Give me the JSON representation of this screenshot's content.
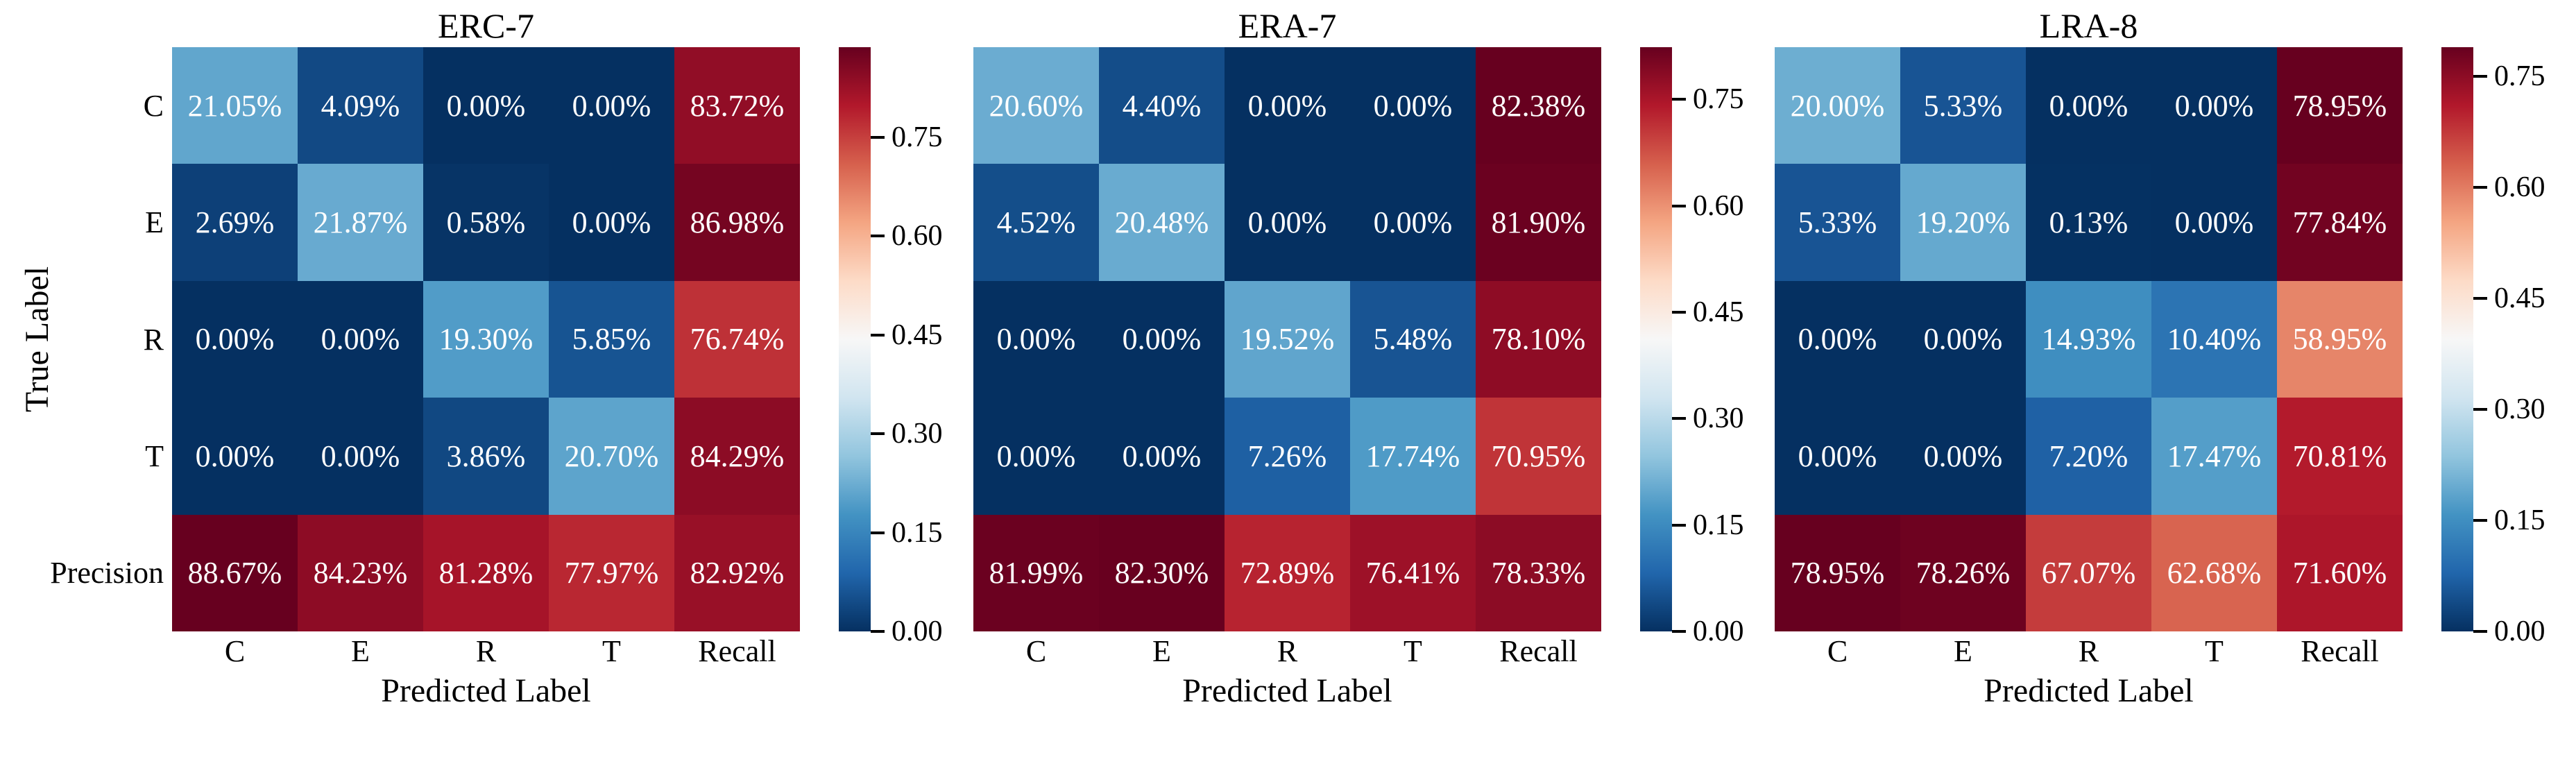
{
  "figure": {
    "xlabel": "Predicted Label",
    "ylabel": "True Label",
    "row_labels": [
      "C",
      "E",
      "R",
      "T",
      "Precision"
    ],
    "col_labels": [
      "C",
      "E",
      "R",
      "T",
      "Recall"
    ]
  },
  "chart_data": [
    {
      "type": "heatmap",
      "title": "ERC-7",
      "rows": [
        "C",
        "E",
        "R",
        "T",
        "Precision"
      ],
      "cols": [
        "C",
        "E",
        "R",
        "T",
        "Recall"
      ],
      "values_percent": [
        [
          21.05,
          4.09,
          0.0,
          0.0,
          83.72
        ],
        [
          2.69,
          21.87,
          0.58,
          0.0,
          86.98
        ],
        [
          0.0,
          0.0,
          19.3,
          5.85,
          76.74
        ],
        [
          0.0,
          0.0,
          3.86,
          20.7,
          84.29
        ],
        [
          88.67,
          84.23,
          81.28,
          77.97,
          82.92
        ]
      ],
      "xlabel": "Predicted Label",
      "ylabel": "True Label",
      "colormap": "RdBu_r",
      "vmin": 0.0,
      "colorbar_ticks": [
        "0.00",
        "0.15",
        "0.30",
        "0.45",
        "0.60",
        "0.75"
      ],
      "cell_text_format": "percent_2dp"
    },
    {
      "type": "heatmap",
      "title": "ERA-7",
      "rows": [
        "C",
        "E",
        "R",
        "T",
        "Precision"
      ],
      "cols": [
        "C",
        "E",
        "R",
        "T",
        "Recall"
      ],
      "values_percent": [
        [
          20.6,
          4.4,
          0.0,
          0.0,
          82.38
        ],
        [
          4.52,
          20.48,
          0.0,
          0.0,
          81.9
        ],
        [
          0.0,
          0.0,
          19.52,
          5.48,
          78.1
        ],
        [
          0.0,
          0.0,
          7.26,
          17.74,
          70.95
        ],
        [
          81.99,
          82.3,
          72.89,
          76.41,
          78.33
        ]
      ],
      "xlabel": "Predicted Label",
      "ylabel": "",
      "colormap": "RdBu_r",
      "vmin": 0.0,
      "colorbar_ticks": [
        "0.00",
        "0.15",
        "0.30",
        "0.45",
        "0.60",
        "0.75"
      ],
      "cell_text_format": "percent_2dp"
    },
    {
      "type": "heatmap",
      "title": "LRA-8",
      "rows": [
        "C",
        "E",
        "R",
        "T",
        "Precision"
      ],
      "cols": [
        "C",
        "E",
        "R",
        "T",
        "Recall"
      ],
      "values_percent": [
        [
          20.0,
          5.33,
          0.0,
          0.0,
          78.95
        ],
        [
          5.33,
          19.2,
          0.13,
          0.0,
          77.84
        ],
        [
          0.0,
          0.0,
          14.93,
          10.4,
          58.95
        ],
        [
          0.0,
          0.0,
          7.2,
          17.47,
          70.81
        ],
        [
          78.95,
          78.26,
          67.07,
          62.68,
          71.6
        ]
      ],
      "xlabel": "Predicted Label",
      "ylabel": "",
      "colormap": "RdBu_r",
      "vmin": 0.0,
      "colorbar_ticks": [
        "0.00",
        "0.15",
        "0.30",
        "0.45",
        "0.60",
        "0.75"
      ],
      "cell_text_format": "percent_2dp"
    }
  ]
}
